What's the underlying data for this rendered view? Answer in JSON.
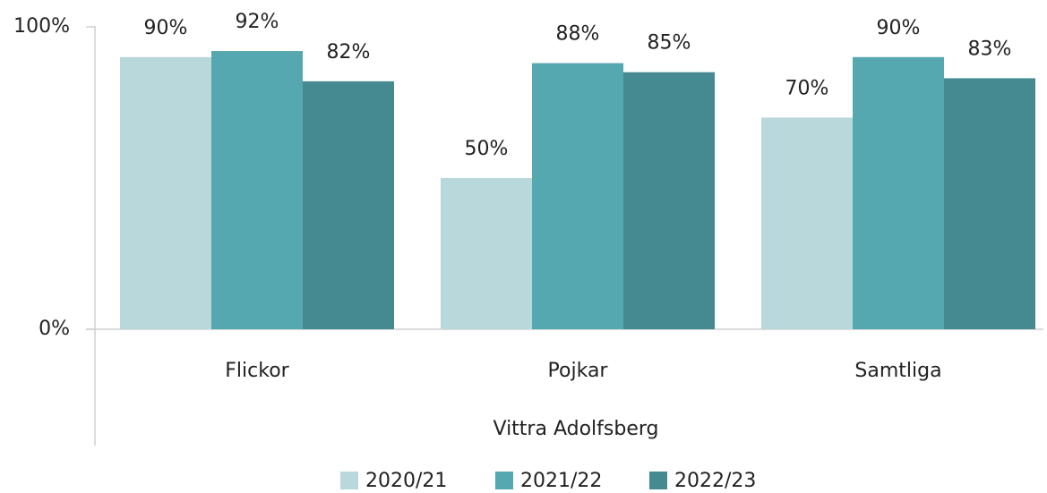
{
  "chart_data": {
    "type": "bar",
    "x_label": "Vittra Adolfsberg",
    "categories": [
      "Flickor",
      "Pojkar",
      "Samtliga"
    ],
    "series": [
      {
        "name": "2020/21",
        "color": "#b9d8dc",
        "values": [
          90,
          50,
          70
        ],
        "value_labels": [
          "90%",
          "50%",
          "70%"
        ]
      },
      {
        "name": "2021/22",
        "color": "#55a7b0",
        "values": [
          92,
          88,
          90
        ],
        "value_labels": [
          "92%",
          "88%",
          "90%"
        ]
      },
      {
        "name": "2022/23",
        "color": "#448a90",
        "values": [
          82,
          85,
          83
        ],
        "value_labels": [
          "82%",
          "85%",
          "83%"
        ]
      }
    ],
    "ylim": [
      0,
      100
    ],
    "yticks": [
      {
        "value": 0,
        "label": "0%"
      },
      {
        "value": 100,
        "label": "100%"
      }
    ],
    "grid": false,
    "legend": "bottom"
  }
}
